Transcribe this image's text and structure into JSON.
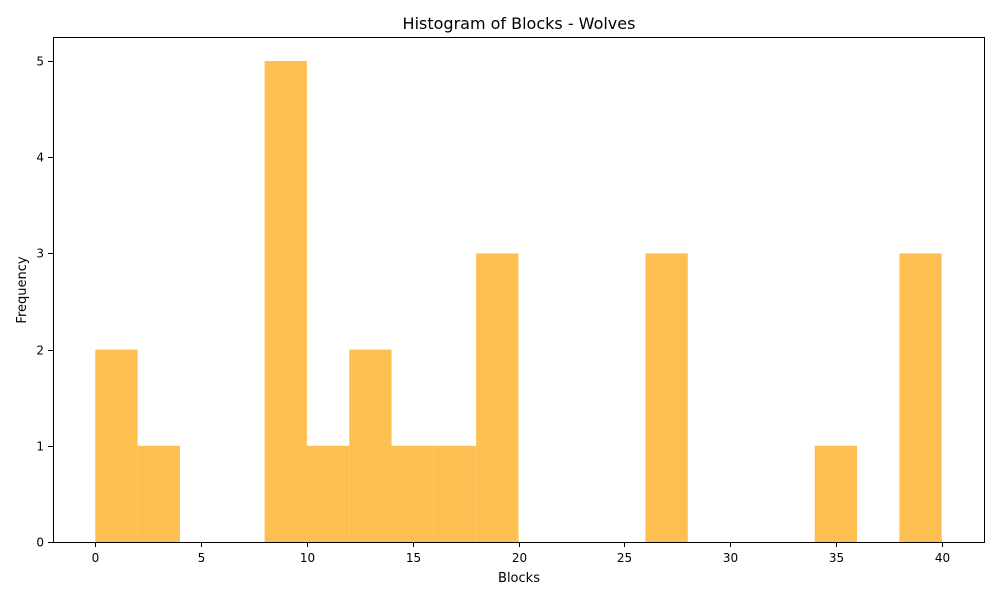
{
  "chart_data": {
    "type": "bar",
    "title": "Histogram of Blocks - Wolves",
    "xlabel": "Blocks",
    "ylabel": "Frequency",
    "bin_edges": [
      0,
      2,
      4,
      6,
      8,
      10,
      12,
      14,
      16,
      18,
      20,
      22,
      24,
      26,
      28,
      30,
      32,
      34,
      36,
      38,
      40
    ],
    "counts": [
      2,
      1,
      0,
      0,
      5,
      1,
      2,
      1,
      1,
      3,
      0,
      0,
      0,
      3,
      0,
      0,
      0,
      1,
      0,
      3
    ],
    "xlim": [
      -2,
      42
    ],
    "ylim": [
      0,
      5.25
    ],
    "xticks": [
      0,
      5,
      10,
      15,
      20,
      25,
      30,
      35,
      40
    ],
    "yticks": [
      0,
      1,
      2,
      3,
      4,
      5
    ],
    "bar_color": "#FDBF4F",
    "grid": false
  }
}
